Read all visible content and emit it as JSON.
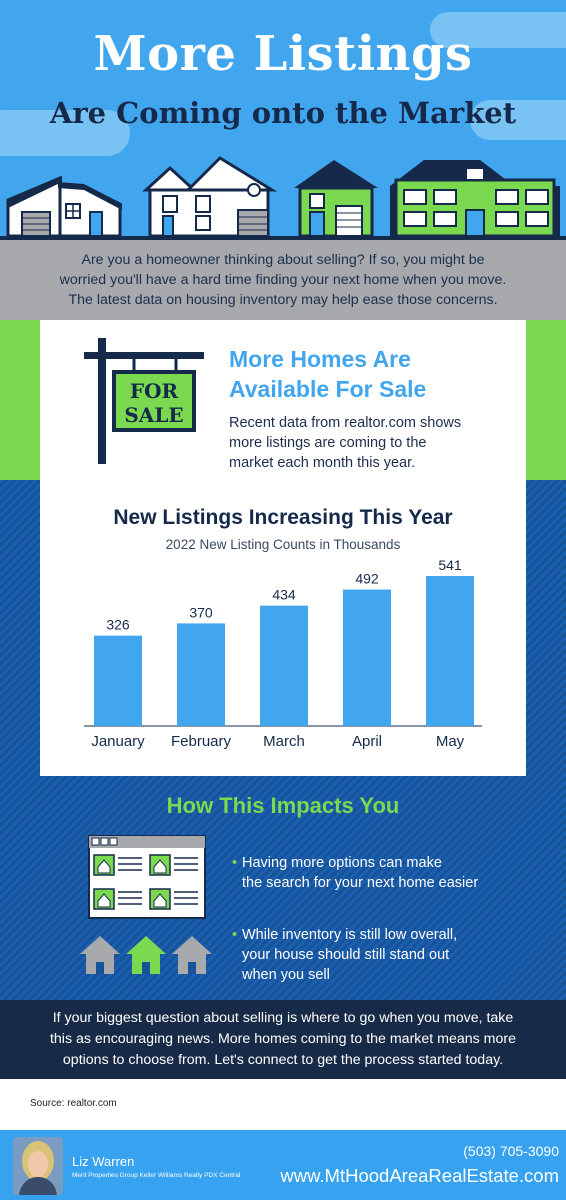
{
  "hero": {
    "title": "More Listings",
    "subtitle": "Are Coming onto the Market"
  },
  "intro": {
    "line1": "Are you a homeowner thinking about selling? If so, you might be",
    "line2": "worried you'll have a hard time finding your next home when you move.",
    "line3": "The latest data on housing inventory may help ease those concerns."
  },
  "sign": {
    "line1": "FOR",
    "line2": "SALE"
  },
  "card": {
    "title_line1": "More Homes Are",
    "title_line2": "Available For Sale",
    "text_line1": "Recent data from realtor.com shows",
    "text_line2": "more listings are coming to the",
    "text_line3": "market each month this year."
  },
  "chart_data": {
    "type": "bar",
    "title": "New Listings Increasing This Year",
    "subtitle": "2022 New Listing Counts in Thousands",
    "categories": [
      "January",
      "February",
      "March",
      "April",
      "May"
    ],
    "values": [
      326,
      370,
      434,
      492,
      541
    ],
    "ylim": [
      0,
      541
    ],
    "grid": false,
    "bar_color": "#42a6ef"
  },
  "impact": {
    "title": "How This Impacts You",
    "bullet_char": "•",
    "bullet1_line1": "Having more options can make",
    "bullet1_line2": "the search for your next home easier",
    "bullet2_line1": "While inventory is still low overall,",
    "bullet2_line2": "your house should still stand out",
    "bullet2_line3": "when you sell"
  },
  "closing": {
    "line1": "If your biggest question about selling is where to go when you move, take",
    "line2": "this as encouraging news. More homes coming to the market means more",
    "line3": "options to choose from. Let's connect to get the process started today."
  },
  "source": "Source: realtor.com",
  "footer": {
    "name": "Liz Warren",
    "company": "Merit Properties Group Keller Williams Realty PDX Central",
    "phone": "(503) 705-3090",
    "website": "www.MtHoodAreaRealEstate.com"
  },
  "colors": {
    "sky": "#42a6ef",
    "navy": "#152a4a",
    "green": "#7ad94e",
    "grey": "#a7a9ad",
    "blue_stripes": "#1b5fb0"
  }
}
